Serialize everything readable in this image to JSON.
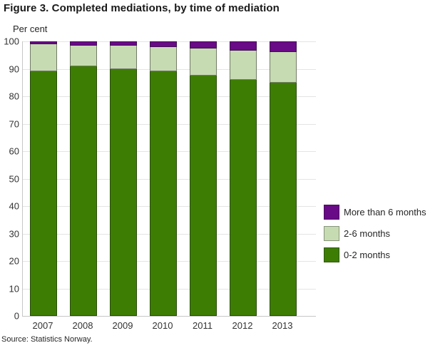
{
  "figure": {
    "title": "Figure 3. Completed mediations, by time of mediation",
    "y_axis_unit_label": "Per cent",
    "source": "Source: Statistics Norway."
  },
  "chart_data": {
    "type": "bar",
    "stacked": true,
    "title": "Figure 3. Completed mediations, by time of mediation",
    "ylabel": "Per cent",
    "xlabel": "",
    "ylim": [
      0,
      100
    ],
    "yticks": [
      0,
      10,
      20,
      30,
      40,
      50,
      60,
      70,
      80,
      90,
      100
    ],
    "grid": true,
    "legend_position": "right",
    "categories": [
      "2007",
      "2008",
      "2009",
      "2010",
      "2011",
      "2012",
      "2013"
    ],
    "series": [
      {
        "name": "0-2 months",
        "color": "#3e7d04",
        "values": [
          89,
          91,
          90,
          89,
          87.5,
          86,
          85
        ]
      },
      {
        "name": "2-6 months",
        "color": "#c7dbb3",
        "values": [
          10,
          7.5,
          8.5,
          9,
          10,
          10.5,
          11
        ]
      },
      {
        "name": "More than 6 months",
        "color": "#690a87",
        "values": [
          1,
          1.5,
          1.5,
          2,
          2.5,
          3.5,
          4
        ]
      }
    ],
    "legend_order": [
      "More than 6 months",
      "2-6 months",
      "0-2 months"
    ]
  }
}
